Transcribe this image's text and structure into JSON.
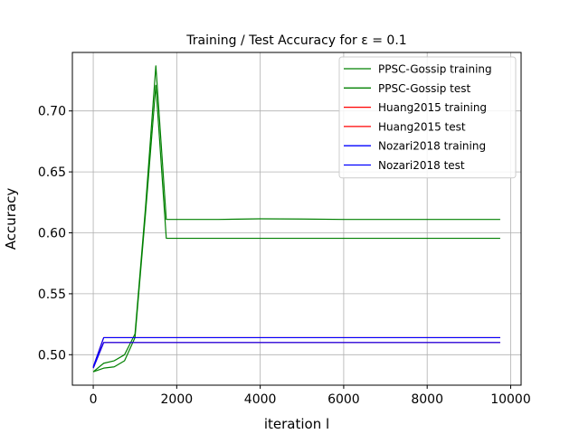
{
  "chart_data": {
    "type": "line",
    "title": "Training / Test Accuracy for ε = 0.1",
    "xlabel": "iteration l",
    "ylabel": "Accuracy",
    "xlim": [
      -500,
      10250
    ],
    "ylim": [
      0.475,
      0.748
    ],
    "x_ticks": [
      0,
      2000,
      4000,
      6000,
      8000,
      10000
    ],
    "x_tick_labels": [
      "0",
      "2000",
      "4000",
      "6000",
      "8000",
      "10000"
    ],
    "y_ticks": [
      0.5,
      0.55,
      0.6,
      0.65,
      0.7
    ],
    "y_tick_labels": [
      "0.50",
      "0.55",
      "0.60",
      "0.65",
      "0.70"
    ],
    "grid": true,
    "legend_position": "top-right",
    "series": [
      {
        "name": "PPSC-Gossip training",
        "color": "#008000",
        "x": [
          0,
          250,
          500,
          750,
          1000,
          1250,
          1500,
          1750,
          2000,
          3000,
          4000,
          5000,
          6000,
          7000,
          8000,
          9000,
          9750
        ],
        "y": [
          0.486,
          0.493,
          0.495,
          0.5,
          0.517,
          0.62,
          0.737,
          0.611,
          0.611,
          0.611,
          0.6115,
          0.6113,
          0.611,
          0.611,
          0.611,
          0.611,
          0.611
        ]
      },
      {
        "name": "PPSC-Gossip test",
        "color": "#008000",
        "x": [
          0,
          250,
          500,
          750,
          1000,
          1250,
          1500,
          1750,
          2000,
          3000,
          4000,
          5000,
          6000,
          7000,
          8000,
          9000,
          9750
        ],
        "y": [
          0.486,
          0.489,
          0.49,
          0.495,
          0.514,
          0.615,
          0.721,
          0.5955,
          0.5955,
          0.5955,
          0.5955,
          0.5955,
          0.5955,
          0.5955,
          0.5955,
          0.5955,
          0.5955
        ]
      },
      {
        "name": "Huang2015 training",
        "color": "#ff0000",
        "x": [
          0,
          250,
          9750
        ],
        "y": [
          0.49,
          0.514,
          0.514
        ]
      },
      {
        "name": "Huang2015 test",
        "color": "#ff0000",
        "x": [
          0,
          250,
          9750
        ],
        "y": [
          0.489,
          0.51,
          0.51
        ]
      },
      {
        "name": "Nozari2018 training",
        "color": "#0000ff",
        "x": [
          0,
          250,
          9750
        ],
        "y": [
          0.49,
          0.514,
          0.514
        ]
      },
      {
        "name": "Nozari2018 test",
        "color": "#0000ff",
        "x": [
          0,
          250,
          9750
        ],
        "y": [
          0.489,
          0.51,
          0.51
        ]
      }
    ]
  }
}
